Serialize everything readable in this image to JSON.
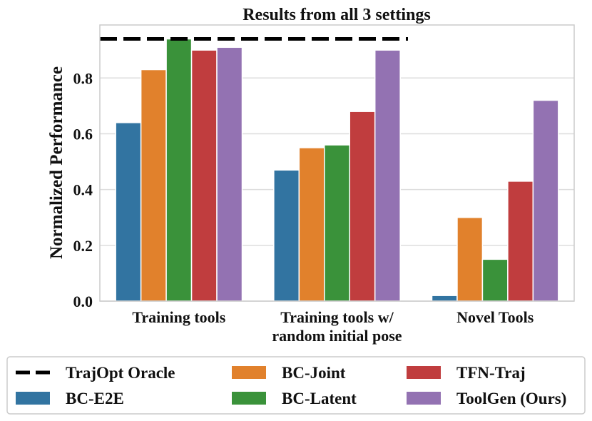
{
  "chart_data": {
    "type": "bar",
    "title": "Results from all 3 settings",
    "xlabel": "",
    "ylabel": "Normalized Performance",
    "ylim": [
      0,
      0.99
    ],
    "yticks": [
      "0.0",
      "0.2",
      "0.4",
      "0.6",
      "0.8"
    ],
    "grid": true,
    "categories": [
      [
        "Training tools"
      ],
      [
        "Training tools w/",
        "random initial pose"
      ],
      [
        "Novel Tools"
      ]
    ],
    "series": [
      {
        "name": "BC-E2E",
        "color": "#3274a1",
        "values": [
          0.64,
          0.47,
          0.02
        ]
      },
      {
        "name": "BC-Joint",
        "color": "#e1812c",
        "values": [
          0.83,
          0.55,
          0.3
        ]
      },
      {
        "name": "BC-Latent",
        "color": "#3a923a",
        "values": [
          0.94,
          0.56,
          0.15
        ]
      },
      {
        "name": "TFN-Traj",
        "color": "#c03d3e",
        "values": [
          0.9,
          0.68,
          0.43
        ]
      },
      {
        "name": "ToolGen (Ours)",
        "color": "#9372b2",
        "values": [
          0.91,
          0.9,
          0.72
        ]
      }
    ],
    "reference_line": {
      "name": "TrajOpt Oracle",
      "value": 0.94,
      "style": "dashed",
      "color": "#000000"
    },
    "legend": {
      "placement": "bottom",
      "entries": [
        "TrajOpt Oracle",
        "BC-Joint",
        "TFN-Traj",
        "BC-E2E",
        "BC-Latent",
        "ToolGen (Ours)"
      ]
    }
  }
}
